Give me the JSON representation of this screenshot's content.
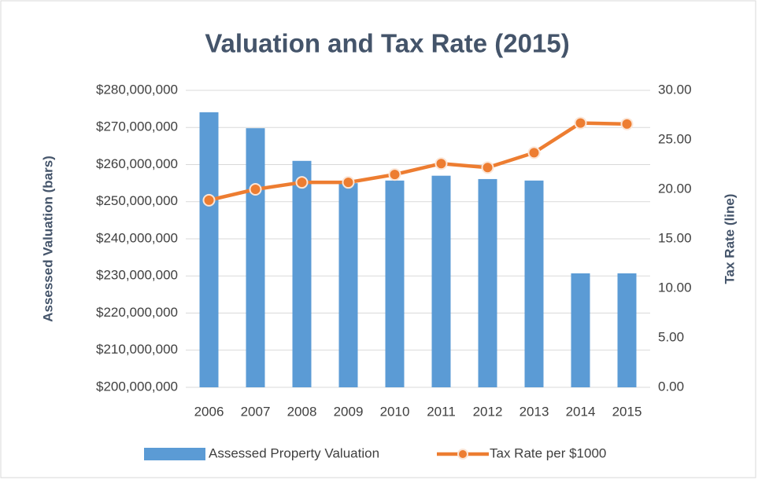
{
  "chart_data": {
    "type": "bar_line",
    "title": "Valuation and Tax Rate (2015)",
    "ylabel": "Assessed Valuation (bars)",
    "y2label": "Tax Rate (line)",
    "categories": [
      "2006",
      "2007",
      "2008",
      "2009",
      "2010",
      "2011",
      "2012",
      "2013",
      "2014",
      "2015"
    ],
    "series": [
      {
        "name": "Assessed Property Valuation",
        "color": "#5b9bd5",
        "type": "bar",
        "values": [
          274100000,
          269800000,
          261000000,
          255000000,
          255700000,
          257000000,
          256100000,
          255700000,
          230700000,
          230700000
        ]
      },
      {
        "name": "Tax Rate per $1000",
        "color": "#ed7d31",
        "type": "line",
        "axis": "y2",
        "values": [
          18.9,
          20.0,
          20.7,
          20.7,
          21.5,
          22.6,
          22.2,
          23.7,
          26.7,
          26.6
        ]
      }
    ],
    "ylim": [
      200000000,
      280000000
    ],
    "yticks": [
      {
        "value": 200000000,
        "label": "$200,000,000"
      },
      {
        "value": 210000000,
        "label": "$210,000,000"
      },
      {
        "value": 220000000,
        "label": "$220,000,000"
      },
      {
        "value": 230000000,
        "label": "$230,000,000"
      },
      {
        "value": 240000000,
        "label": "$240,000,000"
      },
      {
        "value": 250000000,
        "label": "$250,000,000"
      },
      {
        "value": 260000000,
        "label": "$260,000,000"
      },
      {
        "value": 270000000,
        "label": "$270,000,000"
      },
      {
        "value": 280000000,
        "label": "$280,000,000"
      }
    ],
    "y2lim": [
      0,
      30
    ],
    "y2ticks": [
      {
        "value": 0,
        "label": "0.00"
      },
      {
        "value": 5,
        "label": "5.00"
      },
      {
        "value": 10,
        "label": "10.00"
      },
      {
        "value": 15,
        "label": "15.00"
      },
      {
        "value": 20,
        "label": "20.00"
      },
      {
        "value": 25,
        "label": "25.00"
      },
      {
        "value": 30,
        "label": "30.00"
      }
    ],
    "grid": true,
    "legend": "bottom"
  }
}
